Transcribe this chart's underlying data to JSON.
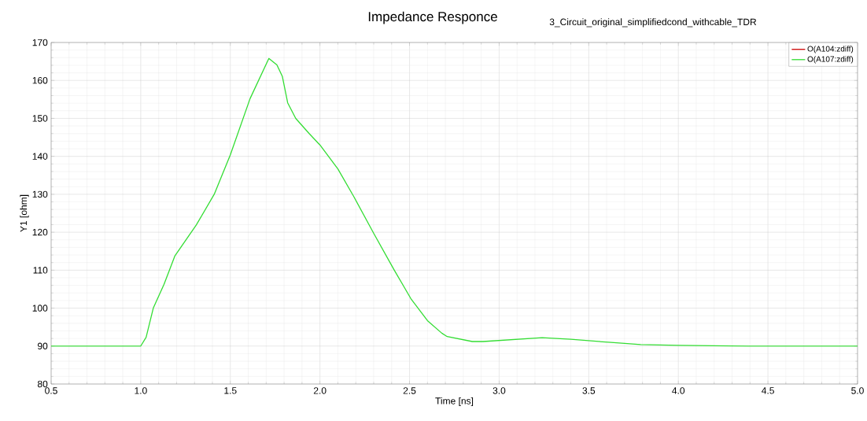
{
  "chart_data": {
    "type": "line",
    "title": "Impedance Responce",
    "subtitle": "3_Circuit_original_simplifiedcond_withcable_TDR",
    "xlabel": "Time [ns]",
    "ylabel": "Y1 [ohm]",
    "x": [
      0.5,
      1.0,
      1.03,
      1.07,
      1.13,
      1.19,
      1.31,
      1.41,
      1.5,
      1.61,
      1.715,
      1.76,
      1.79,
      1.82,
      1.865,
      1.94,
      2.0,
      2.1,
      2.19,
      2.3,
      2.415,
      2.51,
      2.6,
      2.68,
      2.71,
      2.85,
      2.91,
      3.24,
      3.4,
      3.61,
      3.79,
      4.0,
      4.39,
      5.0
    ],
    "series": [
      {
        "name": "O(A104:zdiff)",
        "color": "#cc0000",
        "values": [
          null,
          null,
          null,
          null,
          null,
          null,
          null,
          null,
          null,
          null,
          null,
          null,
          null,
          null,
          null,
          null,
          null,
          null,
          null,
          null,
          null,
          null,
          null,
          null,
          null,
          null,
          null,
          null,
          null,
          null,
          null,
          null,
          null,
          null
        ]
      },
      {
        "name": "O(A107:zdiff)",
        "color": "#33dd33",
        "values": [
          90,
          90,
          92.3,
          100,
          106.3,
          113.7,
          121.9,
          130,
          140.4,
          155.2,
          165.8,
          164.1,
          161.1,
          154.1,
          150,
          146,
          143,
          136.7,
          129.3,
          119.7,
          110,
          102.3,
          96.7,
          93.4,
          92.5,
          91.2,
          91.2,
          92.2,
          91.8,
          91,
          90.4,
          90.2,
          90,
          90
        ]
      }
    ],
    "xlim": [
      0.5,
      5.0
    ],
    "ylim": [
      80,
      170
    ],
    "xticks": [
      {
        "value": 0.5,
        "label": "0.5"
      },
      {
        "value": 1,
        "label": "1.0"
      },
      {
        "value": 1.5,
        "label": "1.5"
      },
      {
        "value": 2,
        "label": "2.0"
      },
      {
        "value": 2.5,
        "label": "2.5"
      },
      {
        "value": 3,
        "label": "3.0"
      },
      {
        "value": 3.5,
        "label": "3.5"
      },
      {
        "value": 4,
        "label": "4.0"
      },
      {
        "value": 4.5,
        "label": "4.5"
      },
      {
        "value": 5,
        "label": "5.0"
      }
    ],
    "yticks": [
      80,
      90,
      100,
      110,
      120,
      130,
      140,
      150,
      160,
      170
    ],
    "grid": true,
    "legend": "top right",
    "marker": "none",
    "line_style": "solid"
  }
}
